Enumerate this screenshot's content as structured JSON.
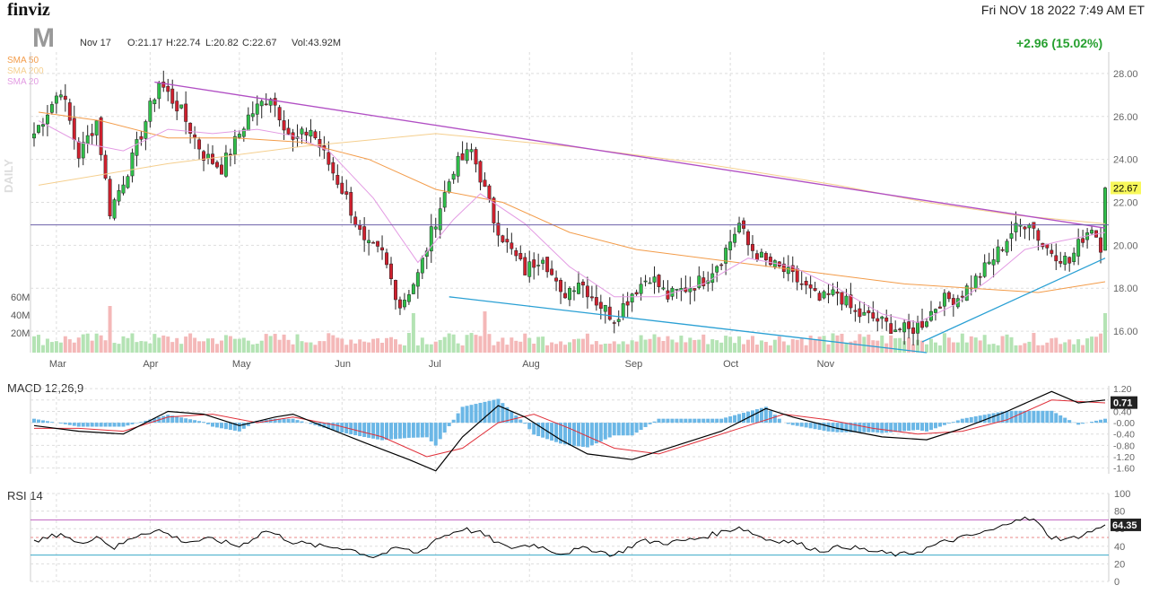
{
  "header": {
    "logo": "finviz",
    "datetime": "Fri NOV 18 2022 7:49 AM ET",
    "ticker": "M",
    "quote_date": "Nov 17",
    "open": "O:21.17",
    "high": "H:22.74",
    "low": "L:20.82",
    "close": "C:22.67",
    "volume": "Vol:43.92M",
    "change": "+2.96 (15.02%)",
    "period_label": "DAILY"
  },
  "legend": [
    {
      "label": "SMA 50",
      "color": "#f39c4a"
    },
    {
      "label": "SMA 200",
      "color": "#f5cf8e"
    },
    {
      "label": "SMA 20",
      "color": "#e39be3"
    }
  ],
  "colors": {
    "up": "#2fbf4a",
    "down": "#d0202e",
    "up_vol": "#b4e3b4",
    "down_vol": "#f4b8b8",
    "trend_upper": "#b14fc4",
    "trend_lower": "#2aa0d4",
    "macd_hist": "#6bb7e6",
    "macd_line": "#000000",
    "signal_line": "#e0303a",
    "rsi_line": "#000000",
    "current_price_tag": "#f8f85a"
  },
  "chart_data": [
    {
      "type": "candlestick",
      "name": "price",
      "ylim": [
        15,
        29
      ],
      "y_ticks": [
        "28.00",
        "26.00",
        "24.00",
        "22.00",
        "20.00",
        "18.00",
        "16.00"
      ],
      "y_tick_values": [
        28,
        26,
        24,
        22,
        20,
        18,
        16
      ],
      "volume_ticks": [
        "60M",
        "40M",
        "20M"
      ],
      "x_labels": [
        "Mar",
        "Apr",
        "May",
        "Jun",
        "Jul",
        "Aug",
        "Sep",
        "Oct",
        "Nov"
      ],
      "current_price": "22.67",
      "anchors": [
        [
          0,
          25.2
        ],
        [
          6,
          27.3
        ],
        [
          10,
          24.2
        ],
        [
          14,
          25.8
        ],
        [
          17,
          21.6
        ],
        [
          22,
          24.0
        ],
        [
          28,
          27.6
        ],
        [
          33,
          26.2
        ],
        [
          38,
          24.2
        ],
        [
          42,
          23.6
        ],
        [
          48,
          26.0
        ],
        [
          53,
          27.0
        ],
        [
          58,
          24.8
        ],
        [
          62,
          25.4
        ],
        [
          66,
          23.8
        ],
        [
          70,
          22.2
        ],
        [
          74,
          20.0
        ],
        [
          78,
          19.6
        ],
        [
          82,
          17.2
        ],
        [
          86,
          18.6
        ],
        [
          90,
          21.2
        ],
        [
          94,
          23.6
        ],
        [
          98,
          24.4
        ],
        [
          100,
          23.2
        ],
        [
          103,
          21.2
        ],
        [
          106,
          20.0
        ],
        [
          110,
          18.8
        ],
        [
          114,
          19.6
        ],
        [
          118,
          17.6
        ],
        [
          122,
          18.4
        ],
        [
          126,
          17.4
        ],
        [
          130,
          16.6
        ],
        [
          134,
          17.8
        ],
        [
          138,
          18.6
        ],
        [
          142,
          17.6
        ],
        [
          146,
          18.0
        ],
        [
          150,
          18.4
        ],
        [
          154,
          19.4
        ],
        [
          158,
          21.0
        ],
        [
          160,
          20.0
        ],
        [
          164,
          19.2
        ],
        [
          168,
          18.8
        ],
        [
          172,
          18.2
        ],
        [
          176,
          17.4
        ],
        [
          180,
          17.8
        ],
        [
          184,
          16.8
        ],
        [
          188,
          16.6
        ],
        [
          192,
          16.2
        ],
        [
          196,
          16.0
        ],
        [
          199,
          16.4
        ],
        [
          203,
          17.4
        ],
        [
          207,
          17.6
        ],
        [
          211,
          18.4
        ],
        [
          215,
          19.4
        ],
        [
          219,
          20.6
        ],
        [
          223,
          21.2
        ],
        [
          226,
          20.0
        ],
        [
          229,
          19.6
        ],
        [
          232,
          19.2
        ],
        [
          235,
          20.4
        ],
        [
          237,
          20.9
        ],
        [
          239,
          20.0
        ],
        [
          240,
          22.67
        ]
      ],
      "sma20": [
        [
          1,
          25.8
        ],
        [
          10,
          24.8
        ],
        [
          20,
          24.4
        ],
        [
          30,
          25.4
        ],
        [
          40,
          25.2
        ],
        [
          50,
          25.4
        ],
        [
          58,
          25.1
        ],
        [
          66,
          24.4
        ],
        [
          76,
          22.2
        ],
        [
          86,
          19.2
        ],
        [
          94,
          21.2
        ],
        [
          100,
          22.4
        ],
        [
          110,
          21.0
        ],
        [
          120,
          19.0
        ],
        [
          130,
          17.6
        ],
        [
          140,
          17.6
        ],
        [
          150,
          18.2
        ],
        [
          160,
          19.4
        ],
        [
          170,
          19.0
        ],
        [
          180,
          18.0
        ],
        [
          190,
          16.8
        ],
        [
          198,
          16.4
        ],
        [
          206,
          17.2
        ],
        [
          214,
          18.4
        ],
        [
          222,
          19.8
        ],
        [
          230,
          20.2
        ],
        [
          240,
          20.6
        ]
      ],
      "sma50": [
        [
          1,
          26.2
        ],
        [
          15,
          25.8
        ],
        [
          30,
          25.0
        ],
        [
          45,
          25.0
        ],
        [
          60,
          24.8
        ],
        [
          75,
          24.0
        ],
        [
          90,
          22.6
        ],
        [
          105,
          22.0
        ],
        [
          120,
          20.6
        ],
        [
          135,
          19.8
        ],
        [
          150,
          19.4
        ],
        [
          165,
          19.0
        ],
        [
          180,
          18.6
        ],
        [
          195,
          18.2
        ],
        [
          210,
          18.0
        ],
        [
          225,
          17.8
        ],
        [
          240,
          18.3
        ]
      ],
      "sma200": [
        [
          1,
          22.8
        ],
        [
          30,
          23.8
        ],
        [
          60,
          24.6
        ],
        [
          90,
          25.2
        ],
        [
          120,
          24.6
        ],
        [
          150,
          23.8
        ],
        [
          180,
          22.8
        ],
        [
          200,
          22.0
        ],
        [
          220,
          21.4
        ],
        [
          240,
          21.0
        ]
      ],
      "trendlines": {
        "upper": [
          [
            27,
            27.6
          ],
          [
            240,
            20.8
          ]
        ],
        "lower": [
          [
            93,
            17.6
          ],
          [
            200,
            15.0
          ]
        ],
        "support": [
          [
            199,
            15.5
          ],
          [
            240,
            19.4
          ]
        ],
        "horizontal": 20.95
      }
    },
    {
      "type": "line",
      "name": "MACD 12,26,9",
      "ylim": [
        -1.8,
        1.3
      ],
      "y_ticks": [
        "1.20",
        "0.80",
        "0.40",
        "-0.00",
        "-0.40",
        "-0.80",
        "-1.20",
        "-1.60"
      ],
      "y_tick_values": [
        1.2,
        0.8,
        0.4,
        0,
        -0.4,
        -0.8,
        -1.2,
        -1.6
      ],
      "current_value": "0.71",
      "macd": [
        [
          0,
          -0.1
        ],
        [
          10,
          -0.3
        ],
        [
          20,
          -0.4
        ],
        [
          30,
          0.4
        ],
        [
          38,
          0.3
        ],
        [
          46,
          -0.1
        ],
        [
          54,
          0.2
        ],
        [
          58,
          0.3
        ],
        [
          66,
          -0.2
        ],
        [
          74,
          -0.7
        ],
        [
          84,
          -1.3
        ],
        [
          90,
          -1.7
        ],
        [
          96,
          -0.5
        ],
        [
          104,
          0.6
        ],
        [
          110,
          0.2
        ],
        [
          118,
          -0.6
        ],
        [
          124,
          -1.1
        ],
        [
          134,
          -1.3
        ],
        [
          144,
          -0.8
        ],
        [
          154,
          -0.3
        ],
        [
          164,
          0.5
        ],
        [
          170,
          0.2
        ],
        [
          180,
          -0.2
        ],
        [
          190,
          -0.5
        ],
        [
          200,
          -0.6
        ],
        [
          208,
          -0.2
        ],
        [
          218,
          0.4
        ],
        [
          228,
          1.1
        ],
        [
          234,
          0.7
        ],
        [
          240,
          0.8
        ]
      ],
      "signal": [
        [
          0,
          -0.2
        ],
        [
          10,
          -0.2
        ],
        [
          20,
          -0.3
        ],
        [
          30,
          0.2
        ],
        [
          40,
          0.3
        ],
        [
          50,
          0.0
        ],
        [
          58,
          0.2
        ],
        [
          68,
          -0.1
        ],
        [
          78,
          -0.5
        ],
        [
          88,
          -1.2
        ],
        [
          96,
          -0.9
        ],
        [
          104,
          0.0
        ],
        [
          112,
          0.3
        ],
        [
          120,
          -0.2
        ],
        [
          130,
          -0.9
        ],
        [
          140,
          -1.1
        ],
        [
          150,
          -0.6
        ],
        [
          160,
          -0.1
        ],
        [
          168,
          0.3
        ],
        [
          178,
          0.1
        ],
        [
          188,
          -0.2
        ],
        [
          198,
          -0.4
        ],
        [
          208,
          -0.3
        ],
        [
          218,
          0.1
        ],
        [
          228,
          0.8
        ],
        [
          240,
          0.7
        ]
      ]
    },
    {
      "type": "line",
      "name": "RSI 14",
      "ylim": [
        0,
        100
      ],
      "y_ticks": [
        "100",
        "80",
        "60",
        "40",
        "20",
        "0"
      ],
      "y_tick_values": [
        100,
        80,
        60,
        40,
        20,
        0
      ],
      "levels": [
        70,
        30
      ],
      "current_value": "64.35",
      "rsi": [
        [
          0,
          44
        ],
        [
          6,
          55
        ],
        [
          10,
          42
        ],
        [
          14,
          52
        ],
        [
          18,
          38
        ],
        [
          24,
          55
        ],
        [
          28,
          58
        ],
        [
          34,
          45
        ],
        [
          40,
          48
        ],
        [
          46,
          40
        ],
        [
          52,
          58
        ],
        [
          58,
          45
        ],
        [
          64,
          40
        ],
        [
          70,
          38
        ],
        [
          76,
          28
        ],
        [
          82,
          38
        ],
        [
          86,
          32
        ],
        [
          90,
          48
        ],
        [
          96,
          60
        ],
        [
          100,
          55
        ],
        [
          106,
          38
        ],
        [
          112,
          42
        ],
        [
          118,
          32
        ],
        [
          124,
          38
        ],
        [
          130,
          30
        ],
        [
          136,
          46
        ],
        [
          142,
          44
        ],
        [
          148,
          48
        ],
        [
          154,
          56
        ],
        [
          158,
          62
        ],
        [
          164,
          48
        ],
        [
          170,
          45
        ],
        [
          176,
          35
        ],
        [
          182,
          40
        ],
        [
          188,
          34
        ],
        [
          194,
          30
        ],
        [
          198,
          34
        ],
        [
          204,
          45
        ],
        [
          210,
          52
        ],
        [
          216,
          60
        ],
        [
          220,
          72
        ],
        [
          224,
          70
        ],
        [
          228,
          50
        ],
        [
          232,
          48
        ],
        [
          236,
          55
        ],
        [
          240,
          64
        ]
      ]
    }
  ]
}
